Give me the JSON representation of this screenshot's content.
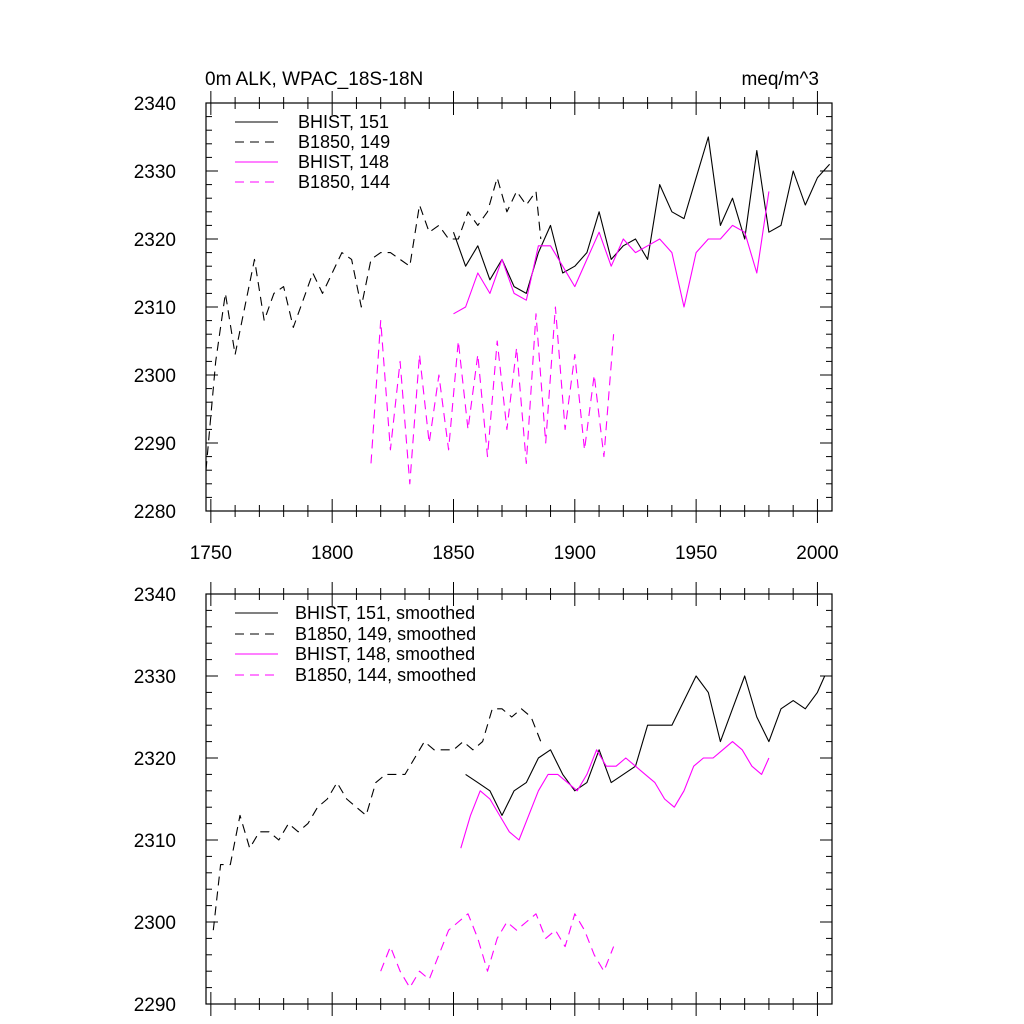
{
  "chart_data": [
    {
      "type": "line",
      "title": "0m ALK, WPAC_18S-18N",
      "units": "meq/m^3",
      "xlim": [
        1748,
        2006
      ],
      "ylim": [
        2280,
        2340
      ],
      "x_ticks": [
        1750,
        1800,
        1850,
        1900,
        1950,
        2000
      ],
      "y_ticks": [
        2280,
        2290,
        2300,
        2310,
        2320,
        2330,
        2340
      ],
      "grid": false,
      "legend_position": "top-left",
      "series": [
        {
          "name": "BHIST, 151",
          "color": "#000000",
          "dash": "solid",
          "x": [
            1850,
            1855,
            1860,
            1865,
            1870,
            1875,
            1880,
            1885,
            1890,
            1895,
            1900,
            1905,
            1910,
            1915,
            1920,
            1925,
            1930,
            1935,
            1940,
            1945,
            1950,
            1955,
            1960,
            1965,
            1970,
            1975,
            1980,
            1985,
            1990,
            1995,
            2000,
            2005
          ],
          "y": [
            2321,
            2316,
            2319,
            2314,
            2317,
            2313,
            2312,
            2318,
            2322,
            2315,
            2316,
            2318,
            2324,
            2317,
            2319,
            2320,
            2317,
            2328,
            2324,
            2323,
            2329,
            2335,
            2322,
            2326,
            2320,
            2333,
            2321,
            2322,
            2330,
            2325,
            2329,
            2331
          ]
        },
        {
          "name": "B1850, 149",
          "color": "#000000",
          "dash": "dashed",
          "x": [
            1748,
            1752,
            1756,
            1760,
            1764,
            1768,
            1772,
            1776,
            1780,
            1784,
            1788,
            1792,
            1796,
            1800,
            1804,
            1808,
            1812,
            1816,
            1820,
            1824,
            1828,
            1832,
            1836,
            1840,
            1844,
            1848,
            1852,
            1856,
            1860,
            1864,
            1868,
            1872,
            1876,
            1880,
            1884,
            1886
          ],
          "y": [
            2286,
            2302,
            2312,
            2303,
            2310,
            2317,
            2308,
            2312,
            2313,
            2307,
            2311,
            2315,
            2312,
            2315,
            2318,
            2317,
            2310,
            2317,
            2318,
            2318,
            2317,
            2316,
            2325,
            2321,
            2322,
            2320,
            2320,
            2324,
            2322,
            2324,
            2329,
            2324,
            2327,
            2325,
            2327,
            2320
          ]
        },
        {
          "name": "BHIST, 148",
          "color": "#ff00ff",
          "dash": "solid",
          "x": [
            1850,
            1855,
            1860,
            1865,
            1870,
            1875,
            1880,
            1885,
            1890,
            1895,
            1900,
            1905,
            1910,
            1915,
            1920,
            1925,
            1930,
            1935,
            1940,
            1945,
            1950,
            1955,
            1960,
            1965,
            1970,
            1975,
            1980
          ],
          "y": [
            2309,
            2310,
            2315,
            2312,
            2317,
            2312,
            2311,
            2319,
            2319,
            2316,
            2313,
            2317,
            2321,
            2316,
            2320,
            2318,
            2319,
            2320,
            2318,
            2310,
            2318,
            2320,
            2320,
            2322,
            2321,
            2315,
            2327
          ]
        },
        {
          "name": "B1850, 144",
          "color": "#ff00ff",
          "dash": "dashed",
          "x": [
            1816,
            1820,
            1824,
            1828,
            1832,
            1836,
            1840,
            1844,
            1848,
            1852,
            1856,
            1860,
            1864,
            1868,
            1872,
            1876,
            1880,
            1884,
            1888,
            1892,
            1896,
            1900,
            1904,
            1908,
            1912,
            1916
          ],
          "y": [
            2287,
            2308,
            2289,
            2302,
            2284,
            2303,
            2290,
            2300,
            2289,
            2305,
            2292,
            2303,
            2288,
            2305,
            2292,
            2304,
            2287,
            2309,
            2290,
            2310,
            2292,
            2303,
            2289,
            2300,
            2288,
            2306
          ]
        }
      ]
    },
    {
      "type": "line",
      "xlim": [
        1748,
        2006
      ],
      "ylim": [
        2290,
        2340
      ],
      "x_ticks": [
        1750,
        1800,
        1850,
        1900,
        1950,
        2000
      ],
      "y_ticks": [
        2290,
        2300,
        2310,
        2320,
        2330,
        2340
      ],
      "grid": false,
      "legend_position": "top-left",
      "series": [
        {
          "name": "BHIST, 151, smoothed",
          "color": "#000000",
          "dash": "solid",
          "x": [
            1855,
            1860,
            1865,
            1870,
            1875,
            1880,
            1885,
            1890,
            1895,
            1900,
            1905,
            1910,
            1915,
            1920,
            1925,
            1930,
            1935,
            1940,
            1945,
            1950,
            1955,
            1960,
            1965,
            1970,
            1975,
            1980,
            1985,
            1990,
            1995,
            2000,
            2003
          ],
          "y": [
            2318,
            2317,
            2316,
            2313,
            2316,
            2317,
            2320,
            2321,
            2318,
            2316,
            2317,
            2321,
            2317,
            2318,
            2319,
            2324,
            2324,
            2324,
            2327,
            2330,
            2328,
            2322,
            2326,
            2330,
            2325,
            2322,
            2326,
            2327,
            2326,
            2328,
            2330
          ]
        },
        {
          "name": "B1850, 149, smoothed",
          "color": "#000000",
          "dash": "dashed",
          "x": [
            1751,
            1754,
            1758,
            1762,
            1766,
            1770,
            1774,
            1778,
            1782,
            1786,
            1790,
            1794,
            1798,
            1802,
            1806,
            1810,
            1814,
            1818,
            1822,
            1826,
            1830,
            1834,
            1838,
            1842,
            1846,
            1850,
            1854,
            1858,
            1862,
            1866,
            1870,
            1874,
            1878,
            1882,
            1886
          ],
          "y": [
            2299,
            2307,
            2307,
            2313,
            2309,
            2311,
            2311,
            2310,
            2312,
            2311,
            2312,
            2314,
            2315,
            2317,
            2315,
            2314,
            2313,
            2317,
            2318,
            2318,
            2318,
            2320,
            2322,
            2321,
            2321,
            2321,
            2322,
            2321,
            2322,
            2326,
            2326,
            2325,
            2326,
            2325,
            2322
          ]
        },
        {
          "name": "BHIST, 148, smoothed",
          "color": "#ff00ff",
          "dash": "solid",
          "x": [
            1853,
            1857,
            1861,
            1865,
            1869,
            1873,
            1877,
            1881,
            1885,
            1889,
            1893,
            1897,
            1901,
            1905,
            1909,
            1913,
            1917,
            1921,
            1925,
            1929,
            1933,
            1937,
            1941,
            1945,
            1949,
            1953,
            1957,
            1961,
            1965,
            1969,
            1973,
            1977,
            1980
          ],
          "y": [
            2309,
            2313,
            2316,
            2315,
            2313,
            2311,
            2310,
            2313,
            2316,
            2318,
            2318,
            2317,
            2316,
            2318,
            2321,
            2319,
            2319,
            2320,
            2319,
            2318,
            2317,
            2315,
            2314,
            2316,
            2319,
            2320,
            2320,
            2321,
            2322,
            2321,
            2319,
            2318,
            2320
          ]
        },
        {
          "name": "B1850, 144, smoothed",
          "color": "#ff00ff",
          "dash": "dashed",
          "x": [
            1820,
            1824,
            1828,
            1832,
            1836,
            1840,
            1844,
            1848,
            1852,
            1856,
            1860,
            1864,
            1868,
            1872,
            1876,
            1880,
            1884,
            1888,
            1892,
            1896,
            1900,
            1904,
            1908,
            1912,
            1916
          ],
          "y": [
            2294,
            2297,
            2294,
            2292,
            2294,
            2293,
            2296,
            2299,
            2300,
            2301,
            2298,
            2294,
            2298,
            2300,
            2299,
            2300,
            2301,
            2298,
            2299,
            2297,
            2301,
            2299,
            2296,
            2294,
            2297
          ]
        }
      ]
    }
  ]
}
